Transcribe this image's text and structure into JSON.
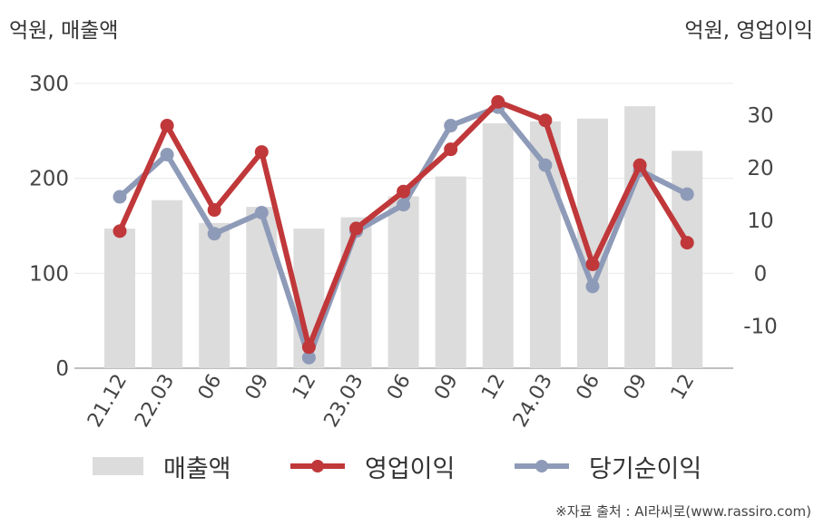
{
  "units": {
    "left": "억원, 매출액",
    "right": "억원, 영업이익"
  },
  "source": "※자료 출처 : AI라씨로(www.rassiro.com)",
  "colors": {
    "bar": "#dcdcdc",
    "op": "#c0383a",
    "net": "#8e9bb8",
    "grid": "#e8e8e8",
    "axis": "#aaaaaa"
  },
  "chart_data": {
    "type": "bar+line",
    "categories": [
      "21.12",
      "22.03",
      "06",
      "09",
      "12",
      "23.03",
      "06",
      "09",
      "12",
      "24.03",
      "06",
      "09",
      "12"
    ],
    "left_axis": {
      "ylim": [
        0,
        300
      ],
      "ticks": [
        "0",
        "100",
        "200",
        "300"
      ]
    },
    "right_axis": {
      "ylim": [
        -18,
        36
      ],
      "ticks": [
        "-10",
        "0",
        "10",
        "20",
        "30"
      ]
    },
    "series": [
      {
        "name": "매출액",
        "kind": "bar",
        "axis": "left",
        "values": [
          147,
          177,
          153,
          170,
          147,
          159,
          181,
          202,
          258,
          260,
          263,
          276,
          229
        ]
      },
      {
        "name": "영업이익",
        "kind": "line",
        "axis": "right",
        "values": [
          8,
          28,
          12,
          23,
          -14,
          8.5,
          15.5,
          23.5,
          32.5,
          29,
          1.7,
          20.5,
          5.8
        ]
      },
      {
        "name": "당기순이익",
        "kind": "line",
        "axis": "right",
        "values": [
          14.5,
          22.5,
          7.5,
          11.5,
          -16,
          8,
          13,
          28,
          31.5,
          20.5,
          -2.5,
          19.5,
          15
        ]
      }
    ]
  }
}
